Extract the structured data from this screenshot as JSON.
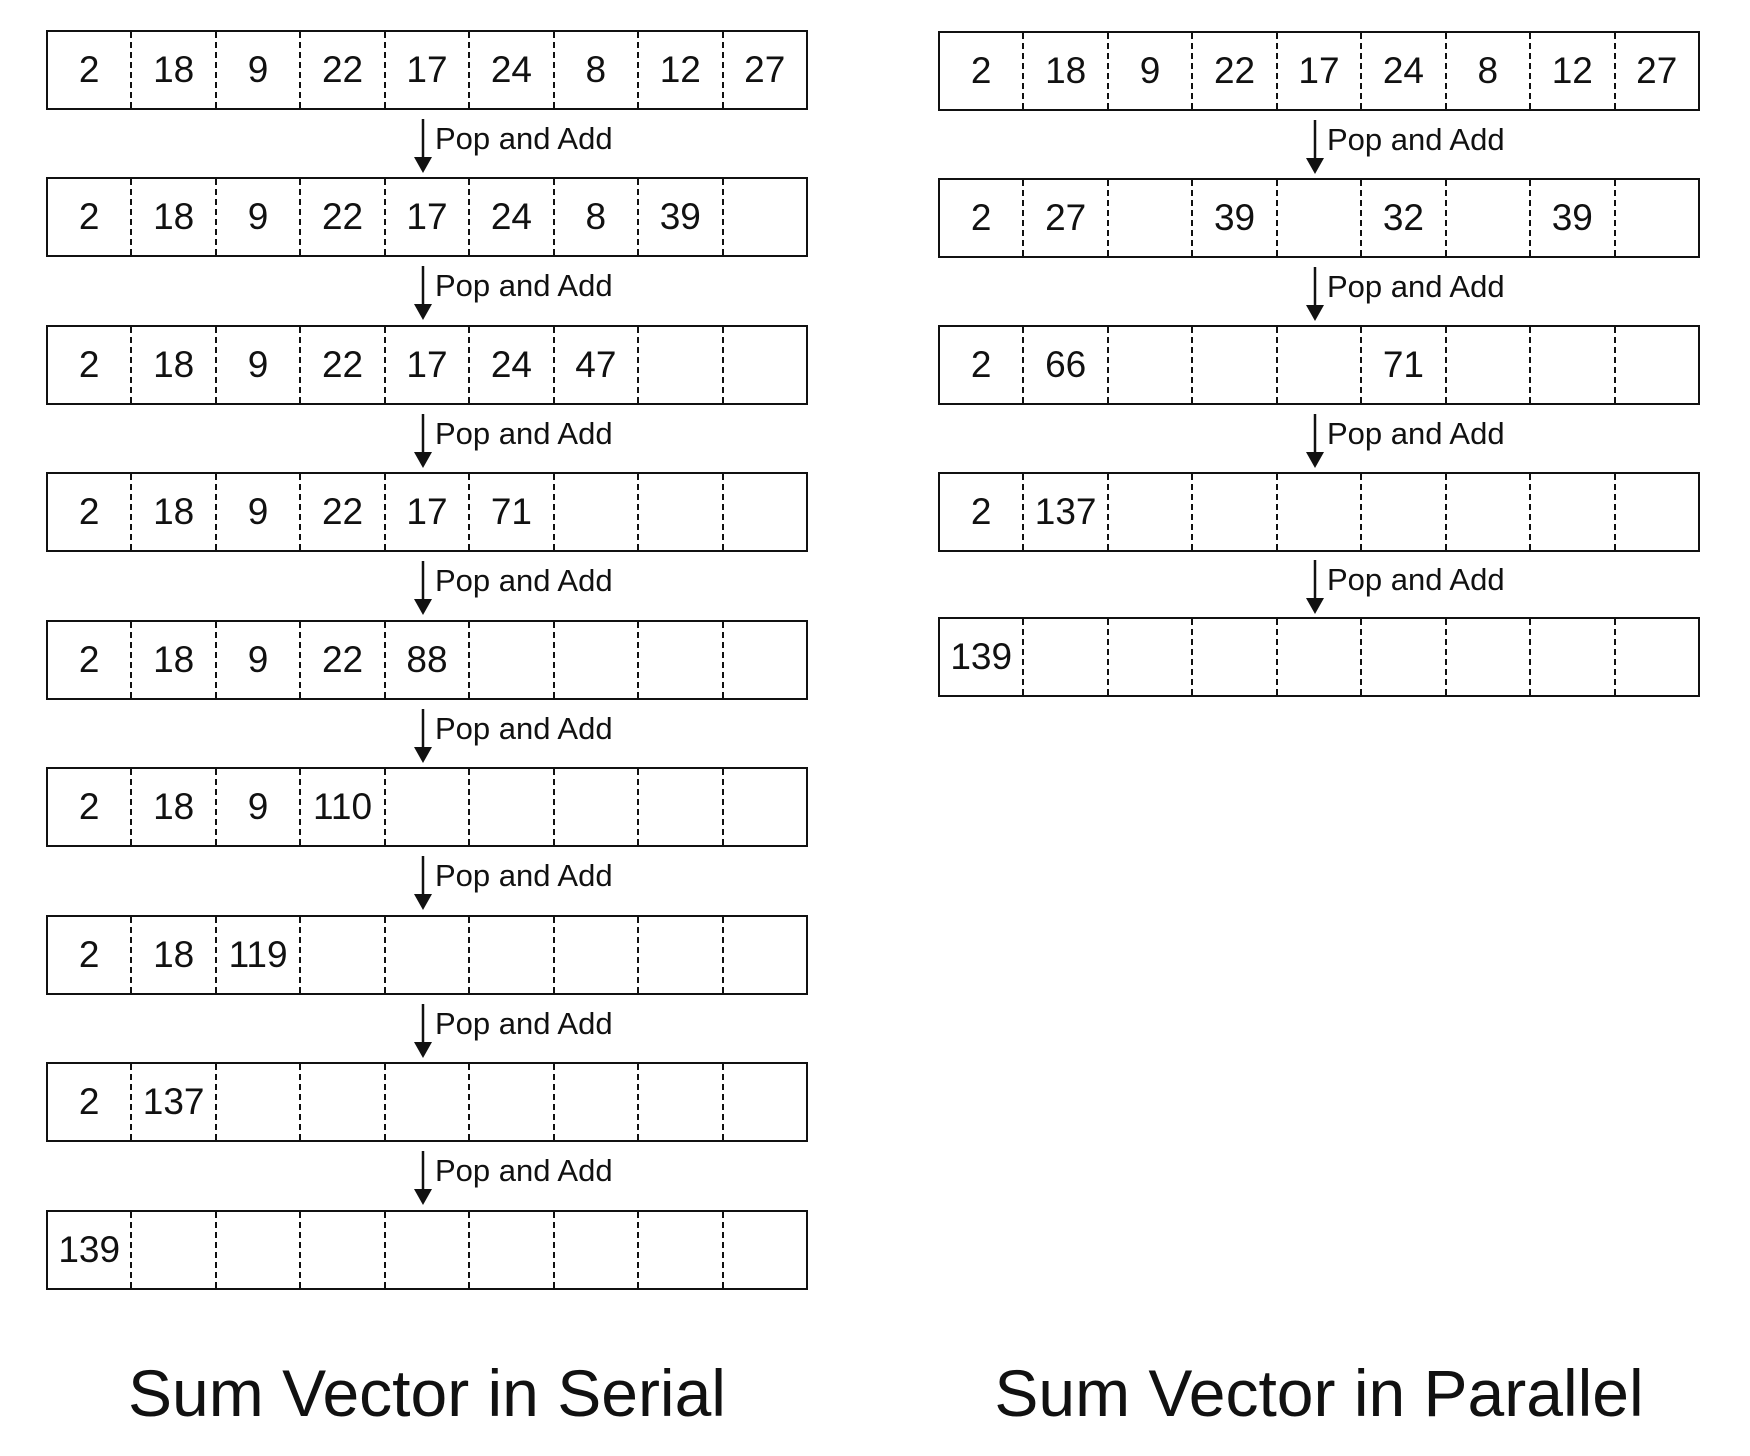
{
  "serial": {
    "caption": "Sum Vector in Serial",
    "arrow_label": "Pop and Add",
    "rows": [
      [
        "2",
        "18",
        "9",
        "22",
        "17",
        "24",
        "8",
        "12",
        "27"
      ],
      [
        "2",
        "18",
        "9",
        "22",
        "17",
        "24",
        "8",
        "39",
        ""
      ],
      [
        "2",
        "18",
        "9",
        "22",
        "17",
        "24",
        "47",
        "",
        ""
      ],
      [
        "2",
        "18",
        "9",
        "22",
        "17",
        "71",
        "",
        "",
        ""
      ],
      [
        "2",
        "18",
        "9",
        "22",
        "88",
        "",
        "",
        "",
        ""
      ],
      [
        "2",
        "18",
        "9",
        "110",
        "",
        "",
        "",
        "",
        ""
      ],
      [
        "2",
        "18",
        "119",
        "",
        "",
        "",
        "",
        "",
        ""
      ],
      [
        "2",
        "137",
        "",
        "",
        "",
        "",
        "",
        "",
        ""
      ],
      [
        "139",
        "",
        "",
        "",
        "",
        "",
        "",
        "",
        ""
      ]
    ]
  },
  "parallel": {
    "caption": "Sum Vector in Parallel",
    "arrow_label": "Pop and Add",
    "rows": [
      [
        "2",
        "18",
        "9",
        "22",
        "17",
        "24",
        "8",
        "12",
        "27"
      ],
      [
        "2",
        "27",
        "",
        "39",
        "",
        "32",
        "",
        "39",
        ""
      ],
      [
        "2",
        "66",
        "",
        "",
        "",
        "71",
        "",
        "",
        ""
      ],
      [
        "2",
        "137",
        "",
        "",
        "",
        "",
        "",
        "",
        ""
      ],
      [
        "139",
        "",
        "",
        "",
        "",
        "",
        "",
        "",
        ""
      ]
    ]
  }
}
